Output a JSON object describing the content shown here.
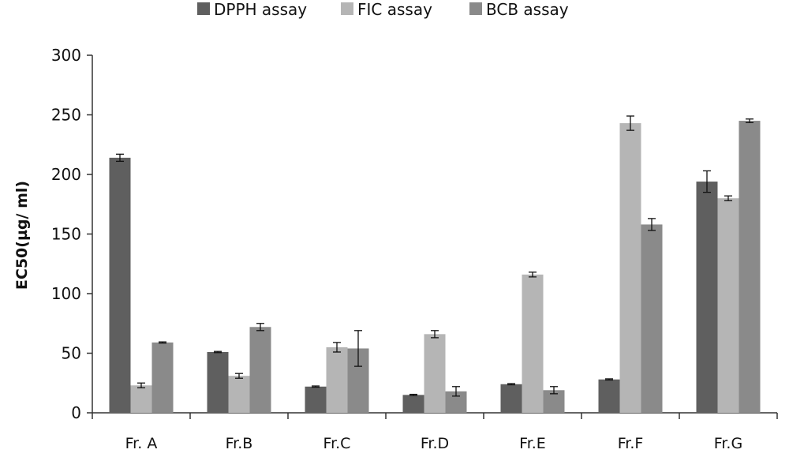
{
  "chart_data": {
    "type": "bar",
    "title": "",
    "xlabel": "",
    "ylabel": "EC50(µg/ ml)",
    "ylim": [
      0,
      300
    ],
    "yticks": [
      0,
      50,
      100,
      150,
      200,
      250,
      300
    ],
    "grid": false,
    "legend_position": "top",
    "categories": [
      "Fr. A",
      "Fr.B",
      "Fr.C",
      "Fr.D",
      "Fr.E",
      "Fr.F",
      "Fr.G"
    ],
    "series": [
      {
        "name": "DPPH assay",
        "color": "#5f5f5f",
        "values": [
          214,
          51,
          22,
          15,
          24,
          28,
          194
        ],
        "errors": [
          3,
          0.5,
          0.5,
          0.5,
          0.5,
          0.5,
          9
        ]
      },
      {
        "name": "FIC assay",
        "color": "#b5b5b5",
        "values": [
          23,
          31,
          55,
          66,
          116,
          243,
          180
        ],
        "errors": [
          2,
          2,
          4,
          3,
          2,
          6,
          2
        ]
      },
      {
        "name": "BCB assay",
        "color": "#8a8a8a",
        "values": [
          59,
          72,
          54,
          18,
          19,
          158,
          245
        ],
        "errors": [
          0.5,
          3,
          15,
          4,
          3,
          5,
          1.5
        ]
      }
    ]
  }
}
